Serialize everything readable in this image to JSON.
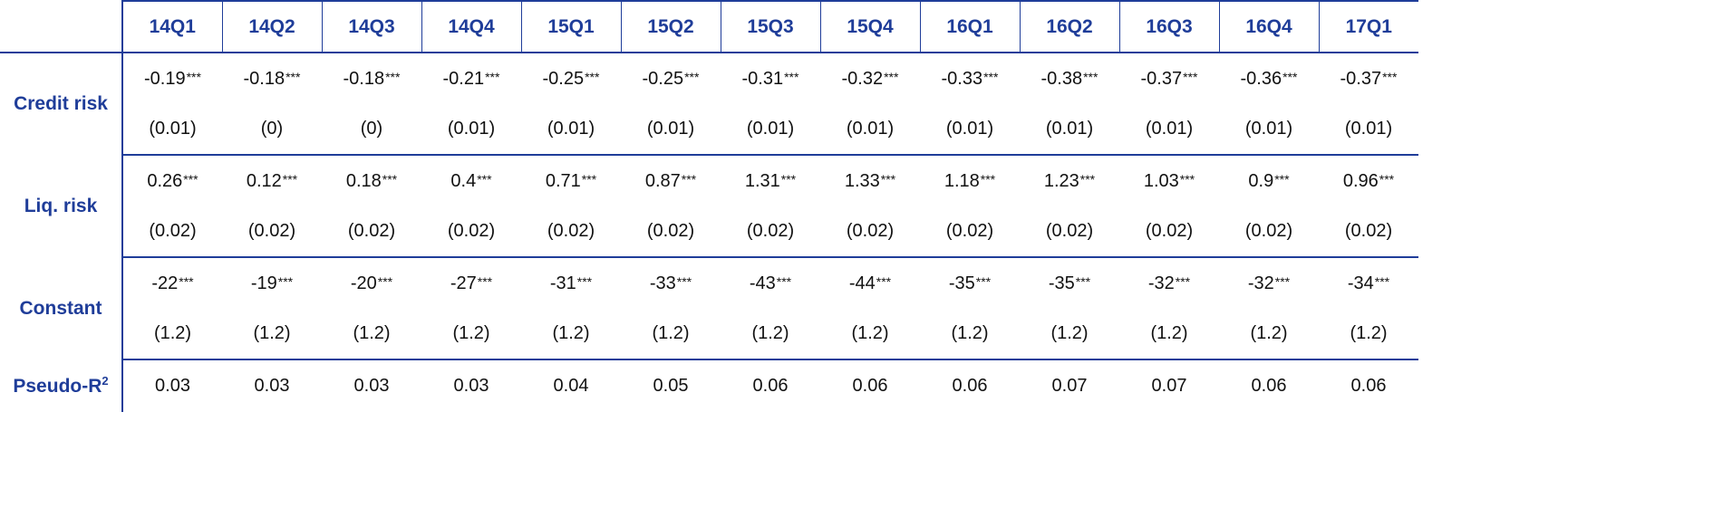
{
  "table": {
    "columns": [
      "14Q1",
      "14Q2",
      "14Q3",
      "14Q4",
      "15Q1",
      "15Q2",
      "15Q3",
      "15Q4",
      "16Q1",
      "16Q2",
      "16Q3",
      "16Q4",
      "17Q1"
    ],
    "rows": [
      {
        "label": "Credit risk",
        "coefs": [
          "-0.19",
          "-0.18",
          "-0.18",
          "-0.21",
          "-0.25",
          "-0.25",
          "-0.31",
          "-0.32",
          "-0.33",
          "-0.38",
          "-0.37",
          "-0.36",
          "-0.37"
        ],
        "stars": "***",
        "ses": [
          "(0.01)",
          "(0)",
          "(0)",
          "(0.01)",
          "(0.01)",
          "(0.01)",
          "(0.01)",
          "(0.01)",
          "(0.01)",
          "(0.01)",
          "(0.01)",
          "(0.01)",
          "(0.01)"
        ]
      },
      {
        "label": "Liq. risk",
        "coefs": [
          "0.26",
          "0.12",
          "0.18",
          "0.4",
          "0.71",
          "0.87",
          "1.31",
          "1.33",
          "1.18",
          "1.23",
          "1.03",
          "0.9",
          "0.96"
        ],
        "stars": "***",
        "ses": [
          "(0.02)",
          "(0.02)",
          "(0.02)",
          "(0.02)",
          "(0.02)",
          "(0.02)",
          "(0.02)",
          "(0.02)",
          "(0.02)",
          "(0.02)",
          "(0.02)",
          "(0.02)",
          "(0.02)"
        ]
      },
      {
        "label": "Constant",
        "coefs": [
          "-22",
          "-19",
          "-20",
          "-27",
          "-31",
          "-33",
          "-43",
          "-44",
          "-35",
          "-35",
          "-32",
          "-32",
          "-34"
        ],
        "stars": "***",
        "ses": [
          "(1.2)",
          "(1.2)",
          "(1.2)",
          "(1.2)",
          "(1.2)",
          "(1.2)",
          "(1.2)",
          "(1.2)",
          "(1.2)",
          "(1.2)",
          "(1.2)",
          "(1.2)",
          "(1.2)"
        ]
      }
    ],
    "r2": {
      "label": "Pseudo-R",
      "label_sup": "2",
      "values": [
        "0.03",
        "0.03",
        "0.03",
        "0.03",
        "0.04",
        "0.05",
        "0.06",
        "0.06",
        "0.06",
        "0.07",
        "0.07",
        "0.06",
        "0.06"
      ]
    },
    "colors": {
      "accent": "#1f3d99",
      "text": "#111111"
    }
  }
}
